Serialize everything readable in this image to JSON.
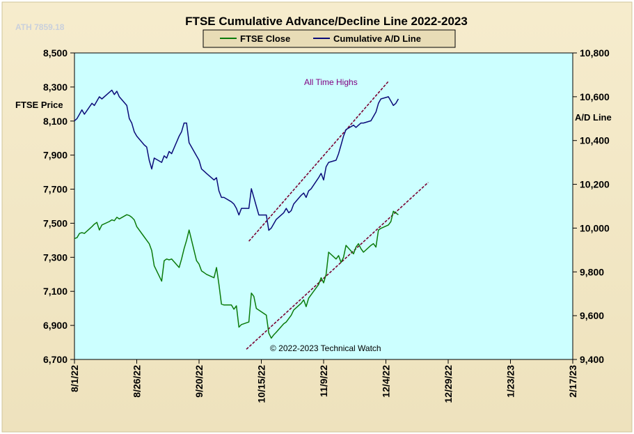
{
  "chart_data": {
    "type": "line",
    "title": "FTSE Cumulative  Advance/Decline  Line 2022-2023",
    "watermark": "ATH 7859.18",
    "annotation": "All Time Highs",
    "copyright": "© 2022-2023  Technical Watch",
    "left_axis_label": "FTSE Price",
    "right_axis_label": "A/D Line",
    "left_ylim": [
      6700,
      8500
    ],
    "right_ylim": [
      9400,
      10800
    ],
    "left_ticks": [
      "8,500",
      "8,300",
      "8,100",
      "7,900",
      "7,700",
      "7,500",
      "7,300",
      "7,100",
      "6,900",
      "6,700"
    ],
    "right_ticks": [
      "10,800",
      "10,600",
      "10,400",
      "10,200",
      "10,000",
      "9,800",
      "9,600",
      "9,400"
    ],
    "x_ticks": [
      "8/1/22",
      "8/26/22",
      "9/20/22",
      "10/15/22",
      "11/9/22",
      "12/4/22",
      "12/29/22",
      "1/23/23",
      "2/17/23"
    ],
    "x_range_days": [
      0,
      200
    ],
    "legend": [
      "FTSE Close",
      "Cumulative A/D Line"
    ],
    "colors": {
      "ftse": "#0a7a0a",
      "ad": "#0a0a78",
      "trend": "#7a0030",
      "plot_bg": "#ccffff",
      "panel_bg": "#f2e7c5",
      "annotation": "#800080"
    },
    "series": [
      {
        "name": "FTSE Close",
        "axis": "left",
        "x": [
          0,
          1,
          2,
          3,
          4,
          7,
          8,
          9,
          10,
          11,
          14,
          15,
          16,
          17,
          18,
          21,
          22,
          23,
          24,
          25,
          28,
          29,
          30,
          31,
          32,
          35,
          36,
          37,
          38,
          39,
          42,
          43,
          44,
          45,
          46,
          49,
          50,
          51,
          52,
          53,
          56,
          57,
          58,
          59,
          60,
          63,
          64,
          65,
          66,
          67,
          70,
          71,
          72,
          73,
          74,
          77,
          78,
          79,
          80,
          81,
          84,
          85,
          86,
          87,
          88,
          91,
          92,
          93,
          94,
          95,
          98,
          99,
          100,
          101,
          102,
          105,
          106,
          107,
          108,
          109,
          112,
          113,
          114,
          115,
          116,
          119,
          120,
          121,
          122,
          123,
          126,
          127,
          128,
          129,
          130
        ],
        "y": [
          7410,
          7415,
          7440,
          7445,
          7440,
          7480,
          7495,
          7505,
          7460,
          7490,
          7510,
          7520,
          7515,
          7535,
          7525,
          7550,
          7545,
          7535,
          7520,
          7480,
          7420,
          7400,
          7380,
          7340,
          7250,
          7160,
          7280,
          7290,
          7285,
          7290,
          7240,
          7290,
          7350,
          7400,
          7460,
          7280,
          7260,
          7220,
          7210,
          7200,
          7180,
          7240,
          7140,
          7025,
          7020,
          7020,
          6995,
          7015,
          6890,
          6905,
          6920,
          7090,
          7070,
          7000,
          6990,
          6960,
          6855,
          6825,
          6845,
          6860,
          6910,
          6920,
          6940,
          6960,
          6990,
          7030,
          7050,
          7010,
          7060,
          7080,
          7140,
          7180,
          7150,
          7200,
          7330,
          7290,
          7310,
          7270,
          7300,
          7370,
          7320,
          7360,
          7380,
          7350,
          7330,
          7370,
          7380,
          7360,
          7460,
          7470,
          7490,
          7510,
          7570,
          7560,
          7550
        ]
      },
      {
        "name": "Cumulative A/D Line",
        "axis": "right",
        "x": [
          0,
          1,
          2,
          3,
          4,
          7,
          8,
          9,
          10,
          11,
          14,
          15,
          16,
          17,
          18,
          21,
          22,
          23,
          24,
          25,
          28,
          29,
          30,
          31,
          32,
          35,
          36,
          37,
          38,
          39,
          42,
          43,
          44,
          45,
          46,
          49,
          50,
          51,
          52,
          53,
          56,
          57,
          58,
          59,
          60,
          63,
          64,
          65,
          66,
          67,
          70,
          71,
          72,
          73,
          74,
          77,
          78,
          79,
          80,
          81,
          84,
          85,
          86,
          87,
          88,
          91,
          92,
          93,
          94,
          95,
          98,
          99,
          100,
          101,
          102,
          105,
          106,
          107,
          108,
          109,
          112,
          113,
          114,
          115,
          116,
          119,
          120,
          121,
          122,
          123,
          126,
          127,
          128,
          129,
          130
        ],
        "y": [
          10490,
          10500,
          10520,
          10540,
          10520,
          10570,
          10560,
          10580,
          10600,
          10590,
          10620,
          10630,
          10610,
          10625,
          10600,
          10560,
          10500,
          10480,
          10440,
          10420,
          10380,
          10370,
          10310,
          10270,
          10320,
          10300,
          10330,
          10320,
          10350,
          10340,
          10420,
          10440,
          10480,
          10480,
          10390,
          10330,
          10310,
          10270,
          10260,
          10250,
          10220,
          10230,
          10170,
          10140,
          10140,
          10120,
          10110,
          10090,
          10060,
          10090,
          10090,
          10180,
          10140,
          10100,
          10060,
          10060,
          9990,
          10000,
          10020,
          10040,
          10070,
          10090,
          10070,
          10080,
          10110,
          10150,
          10160,
          10140,
          10170,
          10180,
          10230,
          10250,
          10220,
          10280,
          10300,
          10310,
          10340,
          10380,
          10420,
          10450,
          10470,
          10460,
          10470,
          10480,
          10480,
          10490,
          10510,
          10530,
          10570,
          10590,
          10600,
          10580,
          10560,
          10570,
          10590
        ]
      }
    ],
    "trendlines": [
      {
        "name": "FTSE trend",
        "axis": "left",
        "x": [
          69,
          142
        ],
        "y": [
          6760,
          7740
        ]
      },
      {
        "name": "A/D trend",
        "axis": "right",
        "x": [
          70,
          126
        ],
        "y": [
          9940,
          10670
        ]
      }
    ]
  }
}
